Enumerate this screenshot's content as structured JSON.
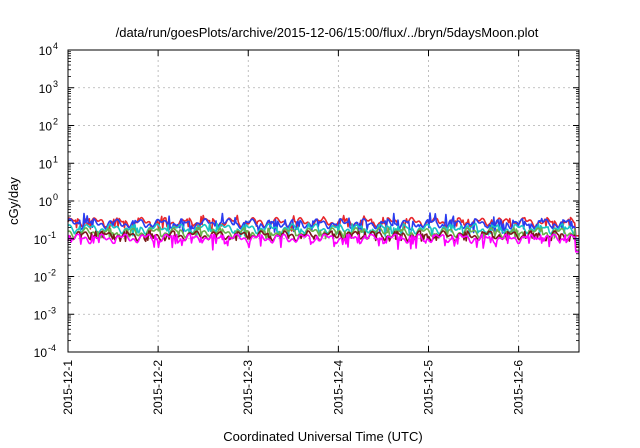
{
  "chart_data": {
    "type": "line",
    "title": "/data/run/goesPlots/archive/2015-12-06/15:00/flux/../bryn/5daysMoon.plot",
    "xlabel": "Coordinated Universal Time (UTC)",
    "ylabel": "cGy/day",
    "yscale": "log",
    "ylim": [
      0.0001,
      10000
    ],
    "y_ticks": [
      {
        "base": "10",
        "exp": "-4"
      },
      {
        "base": "10",
        "exp": "-3"
      },
      {
        "base": "10",
        "exp": "-2"
      },
      {
        "base": "10",
        "exp": "-1"
      },
      {
        "base": "10",
        "exp": "0"
      },
      {
        "base": "10",
        "exp": "1"
      },
      {
        "base": "10",
        "exp": "2"
      },
      {
        "base": "10",
        "exp": "3"
      },
      {
        "base": "10",
        "exp": "4"
      }
    ],
    "x_ticks": [
      "2015-12-1",
      "2015-12-2",
      "2015-12-3",
      "2015-12-4",
      "2015-12-5",
      "2015-12-6"
    ],
    "xlim_days": [
      0,
      5.67
    ],
    "grid": true,
    "legend": "none",
    "series": [
      {
        "color": "#e8262b",
        "base": 0.28,
        "min": 0.16,
        "max": 0.42,
        "drop_end": 0.12
      },
      {
        "color": "#2a3cf0",
        "base": 0.26,
        "min": 0.14,
        "max": 0.48,
        "drop_end": 0.1
      },
      {
        "color": "#17c4c4",
        "base": 0.19,
        "min": 0.11,
        "max": 0.26,
        "drop_end": 0.08
      },
      {
        "color": "#6ab04c",
        "base": 0.15,
        "min": 0.1,
        "max": 0.2,
        "drop_end": 0.07
      },
      {
        "color": "#7a1818",
        "base": 0.125,
        "min": 0.085,
        "max": 0.16,
        "drop_end": 0.06
      },
      {
        "color": "#ff00ff",
        "base": 0.105,
        "min": 0.05,
        "max": 0.13,
        "drop_end": 0.045
      }
    ]
  }
}
